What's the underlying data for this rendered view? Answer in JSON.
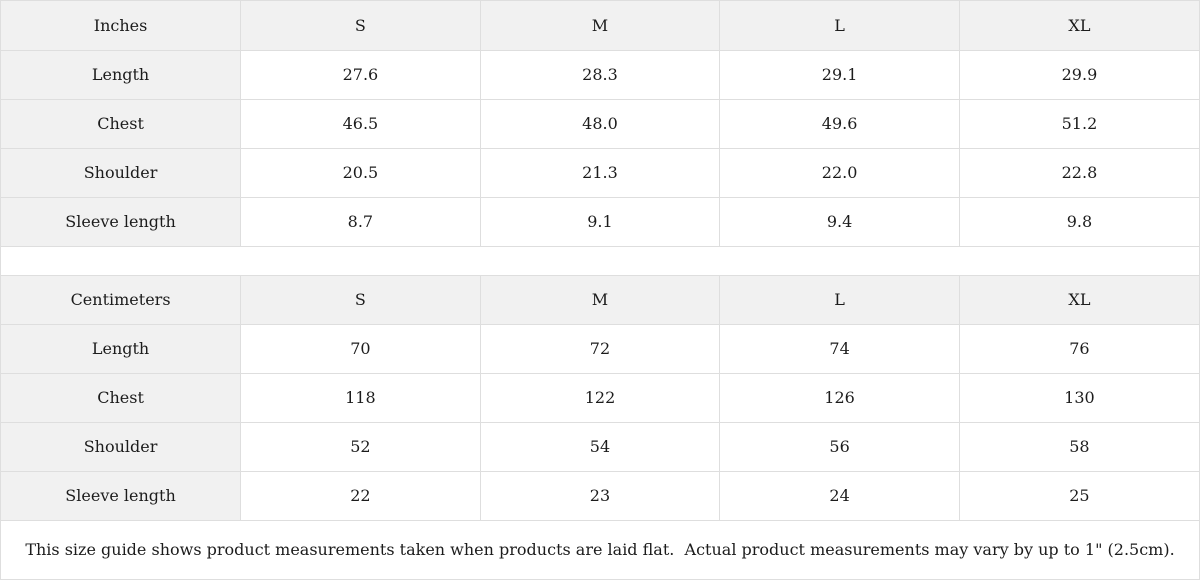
{
  "colors": {
    "header_background": "#f1f1f1",
    "border": "#dedede",
    "text": "#1c1c1c",
    "cell_background": "#ffffff"
  },
  "tables": [
    {
      "unit": "Inches",
      "header": [
        "Inches",
        "S",
        "M",
        "L",
        "XL"
      ],
      "rows": [
        {
          "label": "Length",
          "values": [
            "27.6",
            "28.3",
            "29.1",
            "29.9"
          ]
        },
        {
          "label": "Chest",
          "values": [
            "46.5",
            "48.0",
            "49.6",
            "51.2"
          ]
        },
        {
          "label": "Shoulder",
          "values": [
            "20.5",
            "21.3",
            "22.0",
            "22.8"
          ]
        },
        {
          "label": "Sleeve length",
          "values": [
            "8.7",
            "9.1",
            "9.4",
            "9.8"
          ]
        }
      ]
    },
    {
      "unit": "Centimeters",
      "header": [
        "Centimeters",
        "S",
        "M",
        "L",
        "XL"
      ],
      "rows": [
        {
          "label": "Length",
          "values": [
            "70",
            "72",
            "74",
            "76"
          ]
        },
        {
          "label": "Chest",
          "values": [
            "118",
            "122",
            "126",
            "130"
          ]
        },
        {
          "label": "Shoulder",
          "values": [
            "52",
            "54",
            "56",
            "58"
          ]
        },
        {
          "label": "Sleeve length",
          "values": [
            "22",
            "23",
            "24",
            "25"
          ]
        }
      ]
    }
  ],
  "footer": {
    "note": "This size guide shows product measurements taken when products are laid flat.  Actual product measurements may vary by up to 1\" (2.5cm)."
  }
}
